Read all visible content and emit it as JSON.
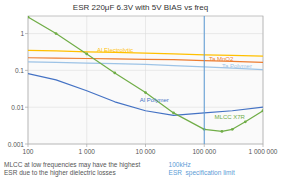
{
  "chart_data": {
    "type": "line",
    "title": "ESR 220μF 6.3V with 5V BIAS vs freq",
    "log": true,
    "grid": true,
    "xlim": [
      100,
      1000000
    ],
    "ylim": [
      0.001,
      3
    ],
    "xticks": [
      100,
      {
        "value": 1000,
        "label": "1 000"
      },
      {
        "value": 10000,
        "label": "10 000"
      },
      {
        "value": 100000,
        "label": "100 000"
      },
      {
        "value": 1000000,
        "label": "1 000 000"
      }
    ],
    "yticks": [
      0.001,
      0.01,
      0.1,
      1
    ],
    "series": [
      {
        "name": "Al Electrolytic",
        "color": "#FFC000",
        "x": [
          100,
          300,
          1000,
          3000,
          10000,
          30000,
          100000,
          300000,
          1000000
        ],
        "values": [
          0.35,
          0.34,
          0.32,
          0.31,
          0.295,
          0.28,
          0.265,
          0.255,
          0.245
        ]
      },
      {
        "name": "Ta MnO2",
        "color": "#ED7D31",
        "x": [
          100,
          300,
          1000,
          3000,
          10000,
          30000,
          100000,
          300000,
          1000000
        ],
        "values": [
          0.22,
          0.215,
          0.21,
          0.205,
          0.2,
          0.195,
          0.185,
          0.175,
          0.165
        ]
      },
      {
        "name": "Ta Polymer",
        "color": "#9DC3E6",
        "x": [
          100,
          300,
          1000,
          3000,
          10000,
          30000,
          100000,
          300000,
          1000000
        ],
        "values": [
          0.17,
          0.165,
          0.158,
          0.152,
          0.145,
          0.135,
          0.125,
          0.115,
          0.105
        ]
      },
      {
        "name": "Al Polymer",
        "color": "#4472C4",
        "x": [
          100,
          300,
          1000,
          3000,
          10000,
          30000,
          100000,
          300000,
          1000000
        ],
        "values": [
          0.082,
          0.055,
          0.028,
          0.014,
          0.008,
          0.006,
          0.007,
          0.008,
          0.01
        ]
      },
      {
        "name": "MLCC X7R",
        "color": "#70AD47",
        "marker": "circle",
        "x": [
          100,
          300,
          1000,
          3000,
          10000,
          30000,
          100000,
          200000,
          300000,
          500000,
          1000000
        ],
        "values": [
          2.8,
          1.0,
          0.28,
          0.085,
          0.025,
          0.007,
          0.0025,
          0.0022,
          0.0025,
          0.004,
          0.008
        ]
      }
    ],
    "vline": {
      "x": 100000,
      "color": "#5B9BD5"
    },
    "annotations": [
      {
        "text": "Al Electrolytic",
        "x": 1500,
        "y": 0.355,
        "color": "#FFC000"
      },
      {
        "text": "Ta MnO2",
        "x": 120000,
        "y": 0.21,
        "color": "#ED7D31"
      },
      {
        "text": "Ta Polymer",
        "x": 200000,
        "y": 0.135,
        "color": "#9DC3E6"
      },
      {
        "text": "Al Polymer",
        "x": 8000,
        "y": 0.016,
        "color": "#4472C4"
      },
      {
        "text": "MLCC X7R",
        "x": 150000,
        "y": 0.0055,
        "color": "#70AD47"
      },
      {
        "text": "MLCC at low frequencies may have the highest\nESR due to the higher dielectric losses",
        "color": "#555555"
      },
      {
        "text": "100kHz\nESR  specification limit",
        "color": "#5B9BD5"
      }
    ]
  }
}
